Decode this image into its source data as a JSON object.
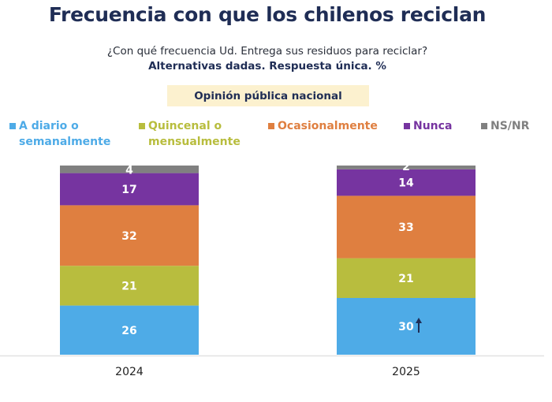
{
  "header": {
    "title": "Frecuencia con que los chilenos reciclan",
    "question": "¿Con qué frecuencia Ud. Entrega sus residuos para reciclar?",
    "subtitle": "Alternativas dadas. Respuesta única. %",
    "scope_label": "Opinión pública nacional"
  },
  "colors": {
    "A diario o semanalmente": "#4eabe7",
    "Quincenal o mensualmente": "#b8bd3e",
    "Ocasionalmente": "#df7f40",
    "Nunca": "#7634a0",
    "NS/NR": "#808080",
    "arrow": "#1f2d55"
  },
  "legend": [
    {
      "label": "A diario o\nsemanalmente",
      "series": "A diario o semanalmente"
    },
    {
      "label": "Quincenal o\nmensualmente",
      "series": "Quincenal o mensualmente"
    },
    {
      "label": "Ocasionalmente",
      "series": "Ocasionalmente"
    },
    {
      "label": "Nunca",
      "series": "Nunca"
    },
    {
      "label": "NS/NR",
      "series": "NS/NR"
    }
  ],
  "chart_data": {
    "type": "bar",
    "stacked": true,
    "title": "Frecuencia con que los chilenos reciclan",
    "xlabel": "",
    "ylabel": "%",
    "ylim": [
      0,
      100
    ],
    "grid": false,
    "legend_position": "top",
    "categories": [
      "2024",
      "2025"
    ],
    "series": [
      {
        "name": "A diario o semanalmente",
        "values": [
          26,
          30
        ]
      },
      {
        "name": "Quincenal o mensualmente",
        "values": [
          21,
          21
        ]
      },
      {
        "name": "Ocasionalmente",
        "values": [
          32,
          33
        ]
      },
      {
        "name": "Nunca",
        "values": [
          17,
          14
        ]
      },
      {
        "name": "NS/NR",
        "values": [
          4,
          2
        ]
      }
    ],
    "annotations": [
      {
        "category": "2025",
        "series": "A diario o semanalmente",
        "marker": "up-arrow",
        "meaning": "significant increase"
      }
    ]
  }
}
